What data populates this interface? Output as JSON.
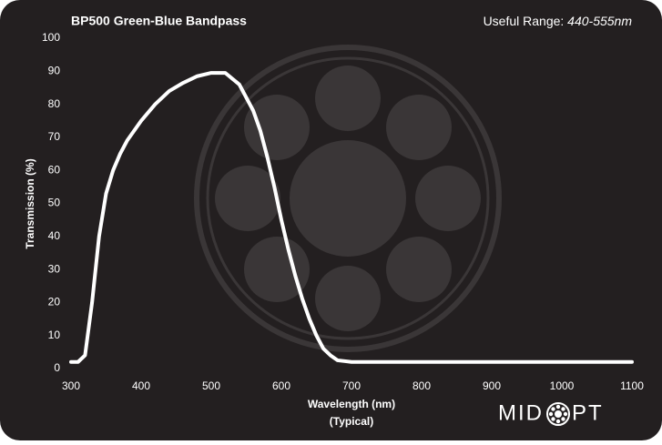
{
  "chart_data": {
    "type": "line",
    "title": "BP500 Green-Blue Bandpass",
    "range_label": "Useful Range:",
    "range_value": "440-555nm",
    "x_label": "Wavelength (nm)",
    "x_sublabel": "(Typical)",
    "y_label": "Transmission (%)",
    "logo": [
      "MID",
      "PT"
    ],
    "x": [
      300,
      310,
      320,
      330,
      340,
      350,
      360,
      370,
      380,
      400,
      420,
      440,
      460,
      480,
      500,
      520,
      540,
      560,
      570,
      580,
      590,
      600,
      610,
      620,
      630,
      640,
      650,
      660,
      670,
      680,
      700,
      800,
      1100
    ],
    "series": [
      {
        "color": "#ffffff",
        "values": [
          2,
          2,
          4,
          20,
          40,
          53,
          60,
          65,
          69,
          75,
          80,
          84,
          86.5,
          88.5,
          89.5,
          89.5,
          86,
          78,
          72,
          64,
          55,
          45,
          36,
          28,
          21,
          15,
          10,
          6,
          4,
          2.5,
          2,
          2,
          2
        ]
      }
    ],
    "xlim": [
      300,
      1100
    ],
    "xticks": [
      300,
      400,
      500,
      600,
      700,
      800,
      900,
      1000,
      1100
    ],
    "ylim": [
      0,
      100
    ],
    "yticks": [
      0,
      10,
      20,
      30,
      40,
      50,
      60,
      70,
      80,
      90,
      100
    ]
  }
}
